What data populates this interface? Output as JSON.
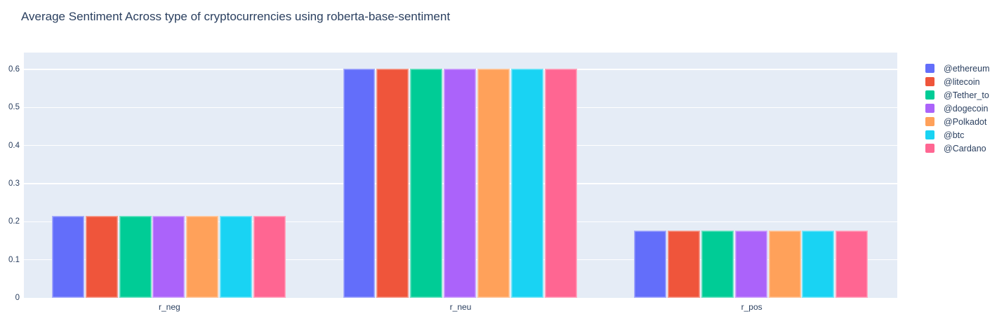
{
  "chart_data": {
    "type": "bar",
    "title": "Average Sentiment Across type of cryptocurrencies using roberta-base-sentiment",
    "categories": [
      "r_neg",
      "r_neu",
      "r_pos"
    ],
    "series": [
      {
        "name": "@ethereum",
        "color": "#636EFA",
        "values": [
          0.215,
          0.601,
          0.176
        ]
      },
      {
        "name": "@litecoin",
        "color": "#EF553B",
        "values": [
          0.215,
          0.601,
          0.176
        ]
      },
      {
        "name": "@Tether_to",
        "color": "#00CC96",
        "values": [
          0.215,
          0.601,
          0.176
        ]
      },
      {
        "name": "@dogecoin",
        "color": "#AB63FA",
        "values": [
          0.215,
          0.601,
          0.176
        ]
      },
      {
        "name": "@Polkadot",
        "color": "#FFA15A",
        "values": [
          0.215,
          0.601,
          0.176
        ]
      },
      {
        "name": "@btc",
        "color": "#19D3F3",
        "values": [
          0.215,
          0.601,
          0.176
        ]
      },
      {
        "name": "@Cardano",
        "color": "#FF6692",
        "values": [
          0.215,
          0.601,
          0.176
        ]
      }
    ],
    "xlabel": "",
    "ylabel": "",
    "ylim": [
      0,
      0.644
    ],
    "yticks": [
      0,
      0.1,
      0.2,
      0.3,
      0.4,
      0.5,
      0.6
    ],
    "ytick_labels": [
      "0",
      "0.1",
      "0.2",
      "0.3",
      "0.4",
      "0.5",
      "0.6"
    ],
    "grid": true,
    "legend_position": "right",
    "colors": {
      "plot_background": "#E5ECF6",
      "grid": "#FFFFFF",
      "text": "#2A3F5F",
      "page_background": "#FFFFFF"
    }
  }
}
